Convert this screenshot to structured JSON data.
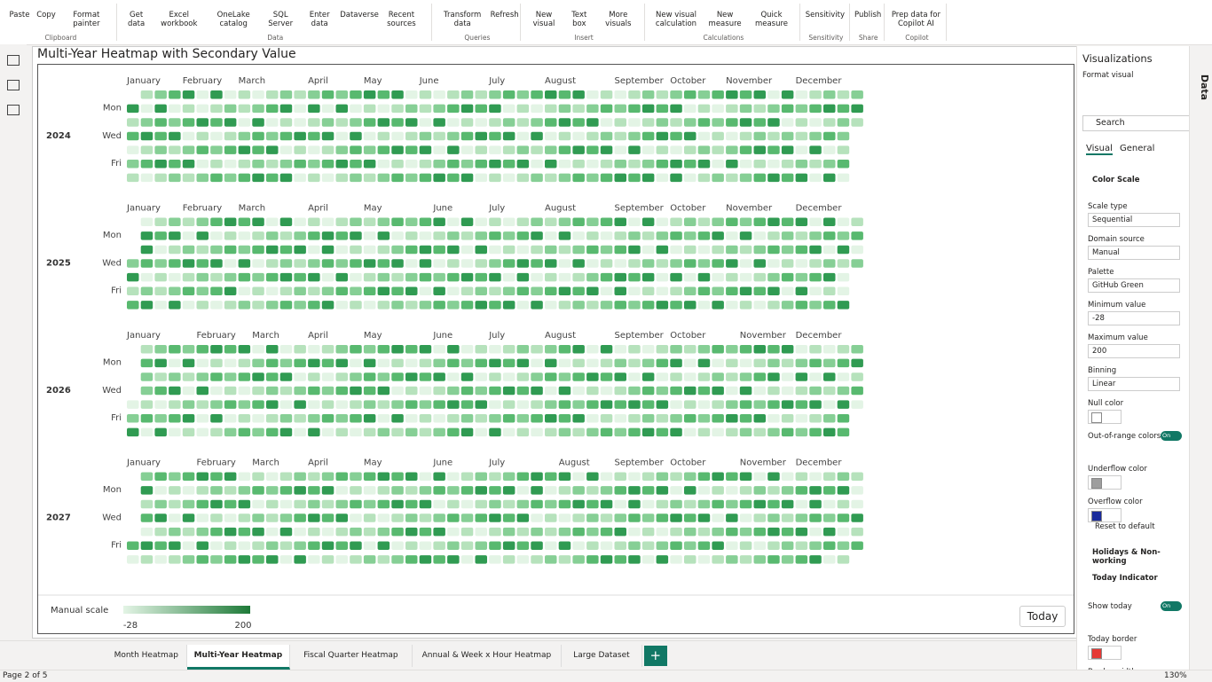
{
  "ribbon": {
    "groups": [
      {
        "name": "Clipboard",
        "buttons": [
          "Paste",
          "Copy",
          "Format painter"
        ]
      },
      {
        "name": "Data",
        "buttons": [
          "Get data",
          "Excel workbook",
          "OneLake catalog",
          "SQL Server",
          "Enter data",
          "Dataverse",
          "Recent sources"
        ]
      },
      {
        "name": "Queries",
        "buttons": [
          "Transform data",
          "Refresh"
        ]
      },
      {
        "name": "Insert",
        "buttons": [
          "New visual",
          "Text box",
          "More visuals"
        ]
      },
      {
        "name": "Calculations",
        "buttons": [
          "New visual calculation",
          "New measure",
          "Quick measure"
        ]
      },
      {
        "name": "Sensitivity",
        "buttons": [
          "Sensitivity"
        ]
      },
      {
        "name": "Share",
        "buttons": [
          "Publish"
        ]
      },
      {
        "name": "Copilot",
        "buttons": [
          "Prep data for Copilot AI"
        ]
      }
    ]
  },
  "visual": {
    "title": "Multi-Year Heatmap with Secondary Value",
    "years": [
      2024,
      2025,
      2026,
      2027
    ],
    "months": [
      "January",
      "February",
      "March",
      "April",
      "May",
      "June",
      "July",
      "August",
      "September",
      "October",
      "November",
      "December"
    ],
    "weekdays": [
      "Mon",
      "Wed",
      "Fri"
    ],
    "legend": {
      "label": "Manual scale",
      "min": -28,
      "max": 200
    },
    "today_button": "Today"
  },
  "pane": {
    "title": "Visualizations",
    "data_tab": "Data",
    "format_visual": "Format visual",
    "search": "Search",
    "tabs": [
      "Visual",
      "General"
    ],
    "section": "Color Scale",
    "fields": [
      {
        "label": "Scale type",
        "value": "Sequential"
      },
      {
        "label": "Domain source",
        "value": "Manual"
      },
      {
        "label": "Palette",
        "value": "GitHub Green"
      },
      {
        "label": "Minimum value",
        "input": -28
      },
      {
        "label": "Maximum value",
        "input": 200
      },
      {
        "label": "Binning",
        "value": "Linear"
      },
      {
        "label": "Null color",
        "color": "#ffffff"
      },
      {
        "label": "Out-of-range colors",
        "toggle": "On"
      },
      {
        "label": "Underflow color",
        "color": "#9e9e9e"
      },
      {
        "label": "Overflow color",
        "color": "#1a2b9c"
      }
    ],
    "reset": "Reset to default",
    "collapsed": "Holidays & Non-working",
    "today_section": "Today Indicator",
    "today_fields": [
      {
        "label": "Show today",
        "toggle": "On"
      },
      {
        "label": "Today border",
        "color": "#e53935"
      },
      {
        "label": "Border width"
      }
    ]
  },
  "pages": {
    "tabs": [
      "Month Heatmap",
      "Multi-Year Heatmap",
      "Fiscal Quarter Heatmap",
      "Annual & Week x Hour Heatmap",
      "Large Dataset"
    ],
    "active": 1,
    "status": "Page 2 of 5",
    "zoom": "130%"
  }
}
